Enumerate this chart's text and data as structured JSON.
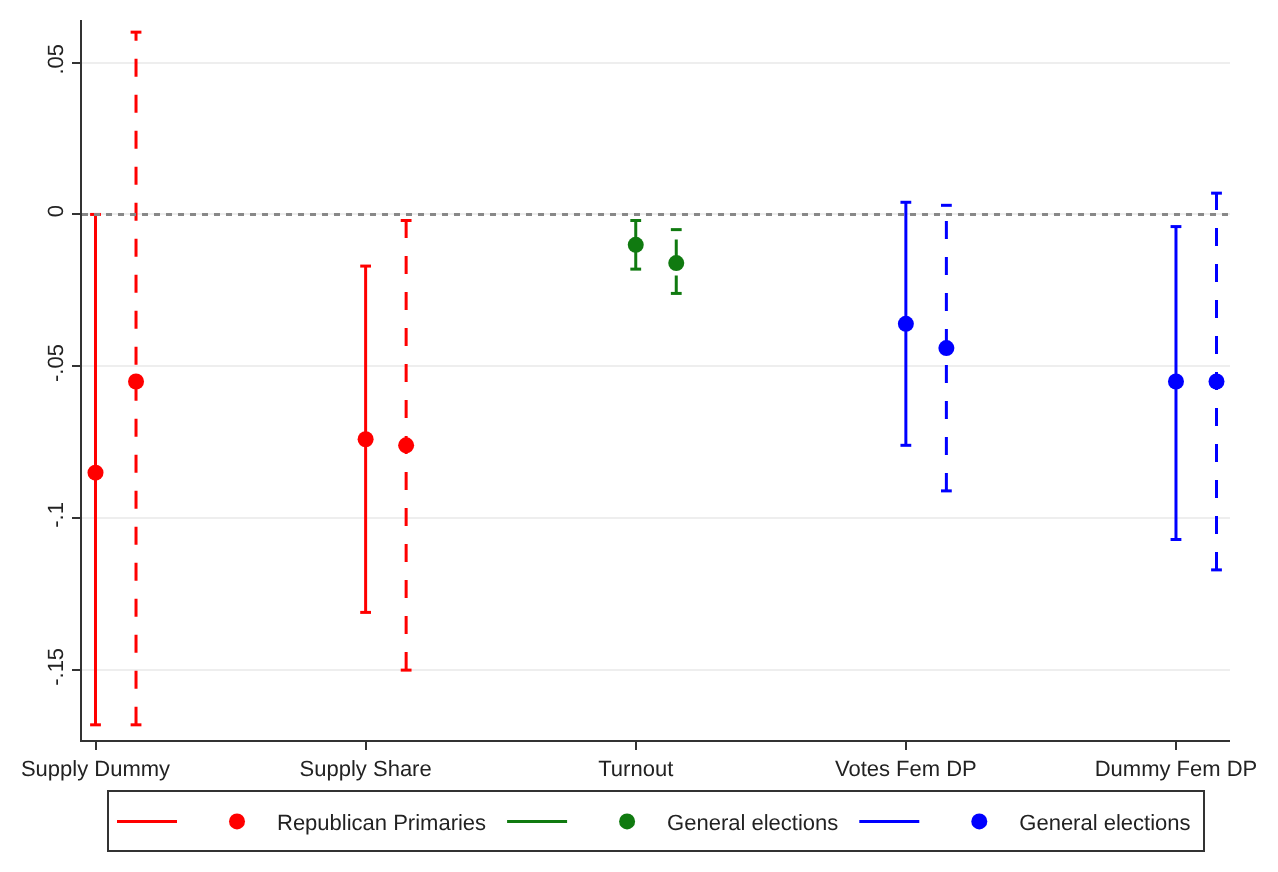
{
  "chart_data": {
    "type": "scatter",
    "categories": [
      "Supply Dummy",
      "Supply Share",
      "Turnout",
      "Votes Fem DP",
      "Dummy Fem DP"
    ],
    "series": [
      {
        "name": "Republican Primaries",
        "color": "#ff0000",
        "line_style": "solid",
        "values": [
          -0.085,
          -0.074,
          null,
          null,
          null
        ],
        "errors": [
          [
            -0.168,
            0.0
          ],
          [
            -0.131,
            -0.017
          ],
          null,
          null,
          null
        ]
      },
      {
        "color": "#ff0000",
        "line_style": "dashed",
        "values": [
          -0.055,
          -0.076,
          null,
          null,
          null
        ],
        "errors": [
          [
            -0.168,
            0.06
          ],
          [
            -0.15,
            -0.002
          ],
          null,
          null,
          null
        ]
      },
      {
        "name": "General elections",
        "color": "#107a10",
        "line_style": "solid",
        "values": [
          null,
          null,
          -0.01,
          null,
          null
        ],
        "errors": [
          null,
          null,
          [
            -0.018,
            -0.002
          ],
          null,
          null
        ]
      },
      {
        "color": "#107a10",
        "line_style": "dashed",
        "values": [
          null,
          null,
          -0.016,
          null,
          null
        ],
        "errors": [
          null,
          null,
          [
            -0.026,
            -0.005
          ],
          null,
          null
        ]
      },
      {
        "name": "General elections",
        "color": "#0000ff",
        "line_style": "solid",
        "values": [
          null,
          null,
          null,
          -0.036,
          -0.055
        ],
        "errors": [
          null,
          null,
          null,
          [
            -0.076,
            0.004
          ],
          [
            -0.107,
            -0.004
          ]
        ]
      },
      {
        "color": "#0000ff",
        "line_style": "dashed",
        "values": [
          null,
          null,
          null,
          -0.044,
          -0.055
        ],
        "errors": [
          null,
          null,
          null,
          [
            -0.091,
            0.003
          ],
          [
            -0.117,
            0.007
          ]
        ]
      }
    ],
    "ylim": [
      -0.173,
      0.064
    ],
    "yticks": [
      {
        "value": 0.05,
        "label": ".05"
      },
      {
        "value": 0,
        "label": "0"
      },
      {
        "value": -0.05,
        "label": "-.05"
      },
      {
        "value": -0.1,
        "label": "-.1"
      },
      {
        "value": -0.15,
        "label": "-.15"
      }
    ],
    "ref_lines": [
      {
        "axis": "y",
        "value": 0,
        "color": "#888888",
        "line_style": "dotted"
      }
    ],
    "grid": "y",
    "legend": "bottom",
    "marker": "circle"
  }
}
